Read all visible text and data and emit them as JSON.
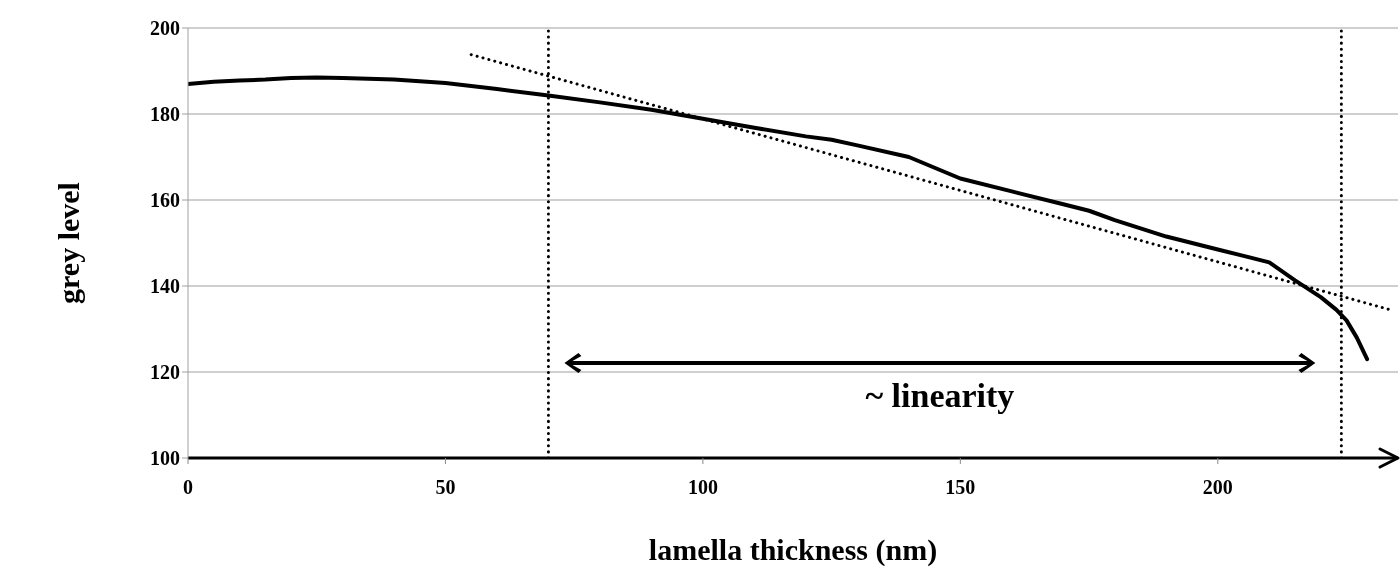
{
  "chart_data": {
    "type": "line",
    "xlabel": "lamella thickness (nm)",
    "ylabel": "grey level",
    "xlim": [
      0,
      235
    ],
    "xticks": [
      0,
      50,
      100,
      150,
      200
    ],
    "ylim": [
      100,
      200
    ],
    "yticks": [
      100,
      120,
      140,
      160,
      180,
      200
    ],
    "grid": "y",
    "marker": "none",
    "series": [
      {
        "color": "#000000",
        "line_style": "solid",
        "x": [
          0,
          5,
          10,
          15,
          20,
          25,
          30,
          40,
          50,
          60,
          70,
          80,
          90,
          100,
          110,
          120,
          125,
          130,
          140,
          150,
          160,
          170,
          175,
          180,
          190,
          200,
          205,
          210,
          215,
          220,
          223,
          225,
          227,
          229
        ],
        "values": [
          187,
          187.5,
          187.8,
          188,
          188.4,
          188.5,
          188.4,
          188,
          187.2,
          185.8,
          184.3,
          182.7,
          181,
          178.9,
          176.8,
          174.8,
          174,
          172.7,
          170,
          165,
          162,
          159,
          157.5,
          155.3,
          151.5,
          148.5,
          147,
          145.5,
          141.3,
          137.4,
          134.5,
          132,
          128,
          123
        ]
      },
      {
        "type": "line",
        "color": "#000000",
        "line_style": "dotted",
        "x": [
          55,
          234
        ],
        "values": [
          193.8,
          134.3
        ]
      }
    ],
    "ref_lines": [
      {
        "axis": "x",
        "value": 70,
        "color": "#000000",
        "line_style": "dotted"
      },
      {
        "axis": "x",
        "value": 224,
        "color": "#000000",
        "line_style": "dotted"
      }
    ],
    "annotations": [
      "~ linearity"
    ]
  }
}
